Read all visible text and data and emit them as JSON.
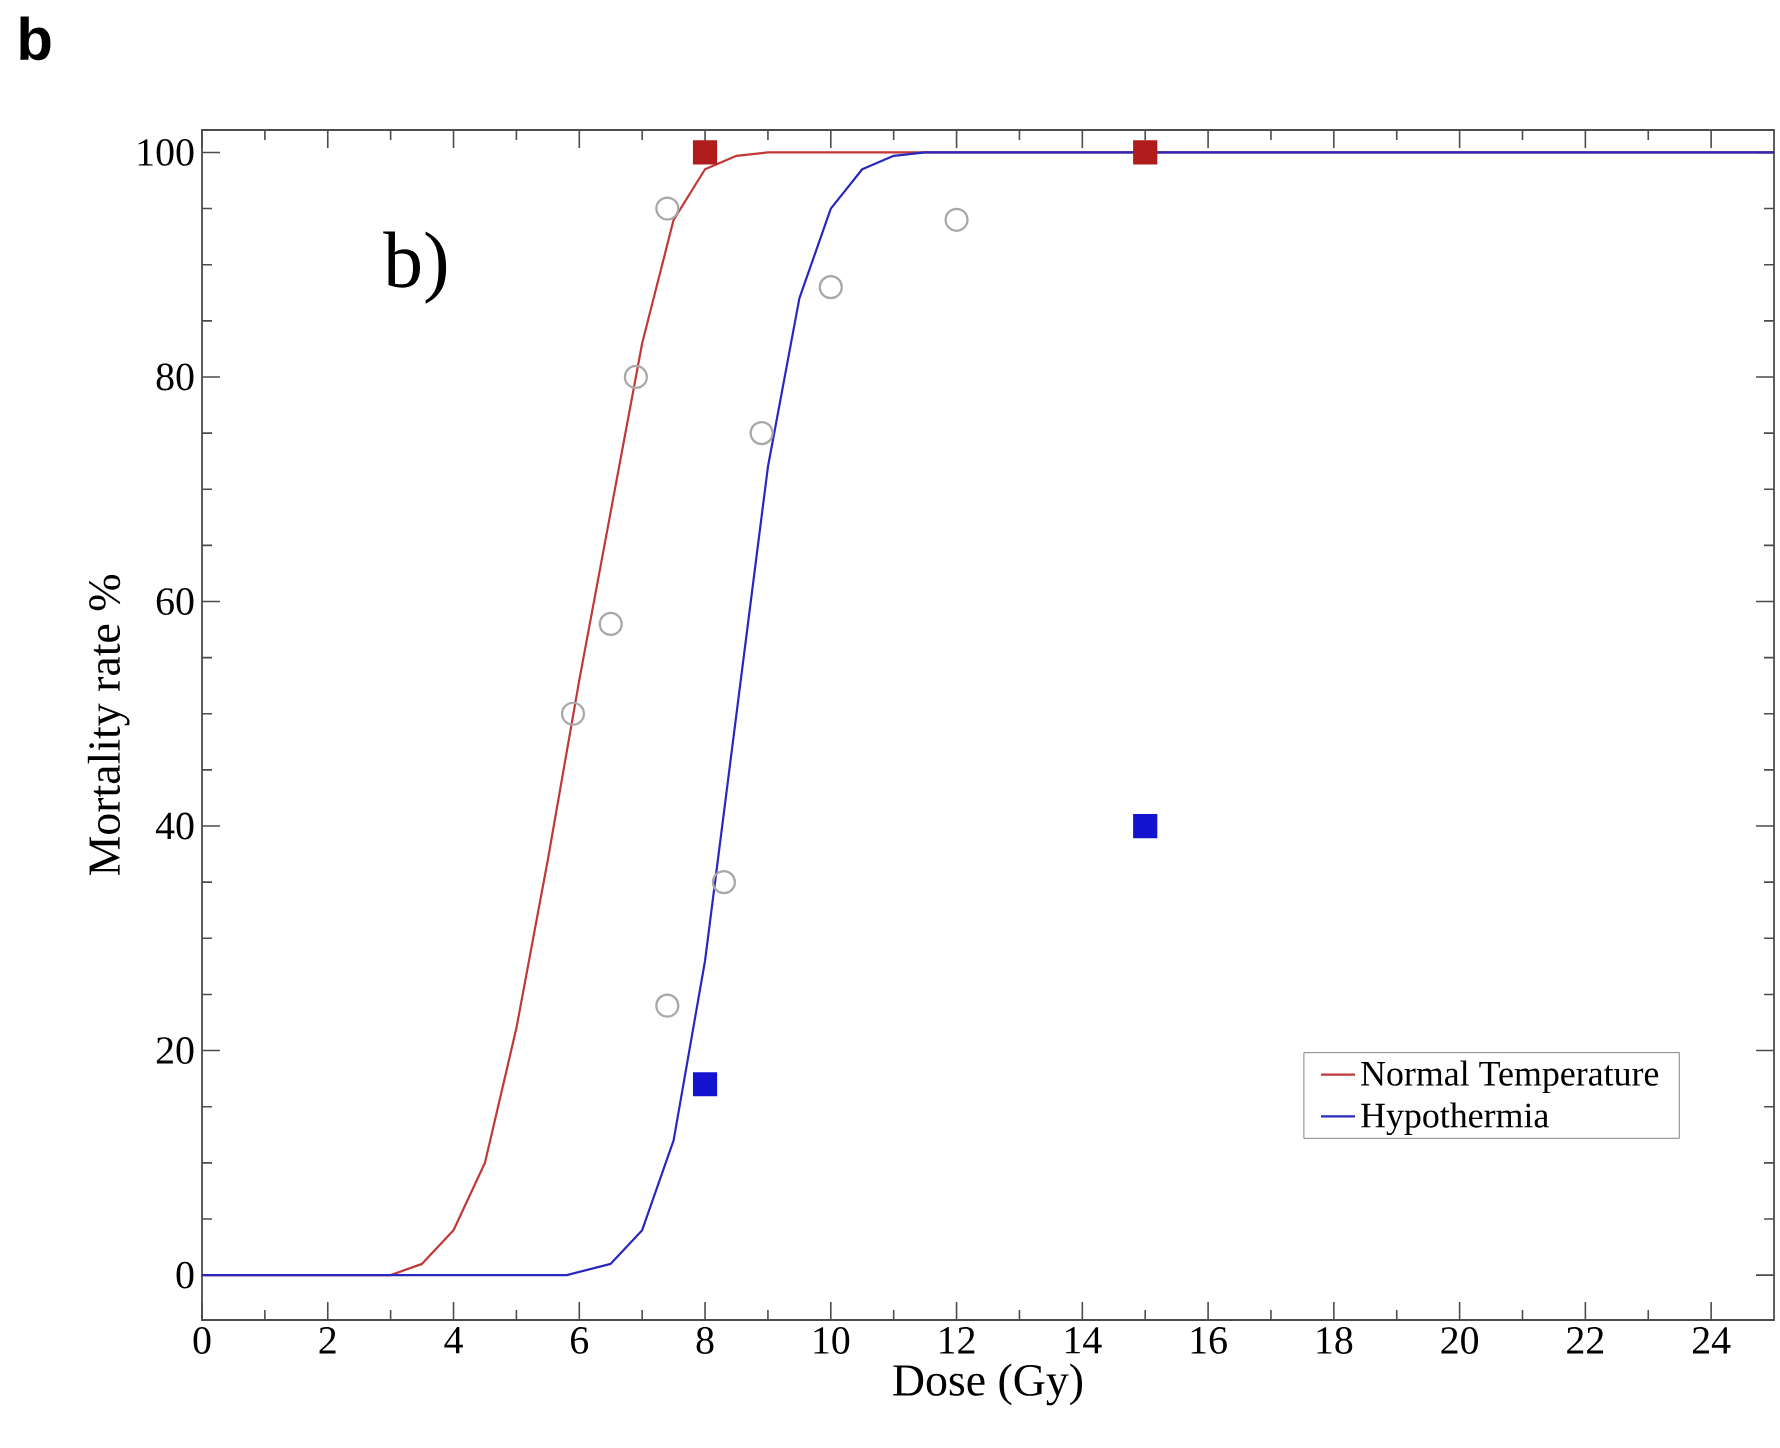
{
  "chart_data": {
    "type": "line",
    "xlabel": "Dose (Gy)",
    "ylabel": "Mortality rate %",
    "annotations": [
      "b",
      "b)"
    ],
    "xlim": [
      0,
      25
    ],
    "ylim": [
      -4,
      102
    ],
    "xticks": [
      0,
      2,
      4,
      6,
      8,
      10,
      12,
      14,
      16,
      18,
      20,
      22,
      24
    ],
    "yticks": [
      0,
      20,
      40,
      60,
      80,
      100
    ],
    "grid": false,
    "legend": "bottom right",
    "line_style": "solid",
    "series": [
      {
        "name": "Normal Temperature",
        "marker": "none",
        "color": "#c03838",
        "x": [
          0,
          3,
          3.5,
          4,
          4.5,
          5,
          5.5,
          6,
          6.5,
          7,
          7.5,
          8,
          8.5,
          9,
          25
        ],
        "values": [
          0,
          0,
          1,
          4,
          10,
          22,
          37,
          53,
          68,
          83,
          94,
          98.5,
          99.7,
          100,
          100
        ]
      },
      {
        "name": "Hypothermia",
        "marker": "none",
        "color": "#2828c0",
        "x": [
          0,
          5.8,
          6.5,
          7,
          7.5,
          8,
          8.5,
          9,
          9.5,
          10,
          10.5,
          11,
          11.5,
          25
        ],
        "values": [
          0,
          0,
          1,
          4,
          12,
          28,
          50,
          72,
          87,
          95,
          98.5,
          99.7,
          100,
          100
        ]
      },
      {
        "type": "scatter",
        "marker": "circle",
        "color": "#a8a8a8",
        "x": [
          5.9,
          6.5,
          6.9,
          7.4,
          7.4,
          8.3,
          8.9,
          10,
          12
        ],
        "values": [
          50,
          58,
          80,
          95,
          24,
          35,
          75,
          88,
          94
        ]
      },
      {
        "type": "scatter",
        "marker": "square",
        "color": "#b01c1c",
        "x": [
          8,
          15
        ],
        "values": [
          100,
          100
        ]
      },
      {
        "type": "scatter",
        "marker": "square",
        "color": "#1414d0",
        "x": [
          8,
          15
        ],
        "values": [
          17,
          40
        ]
      }
    ]
  }
}
